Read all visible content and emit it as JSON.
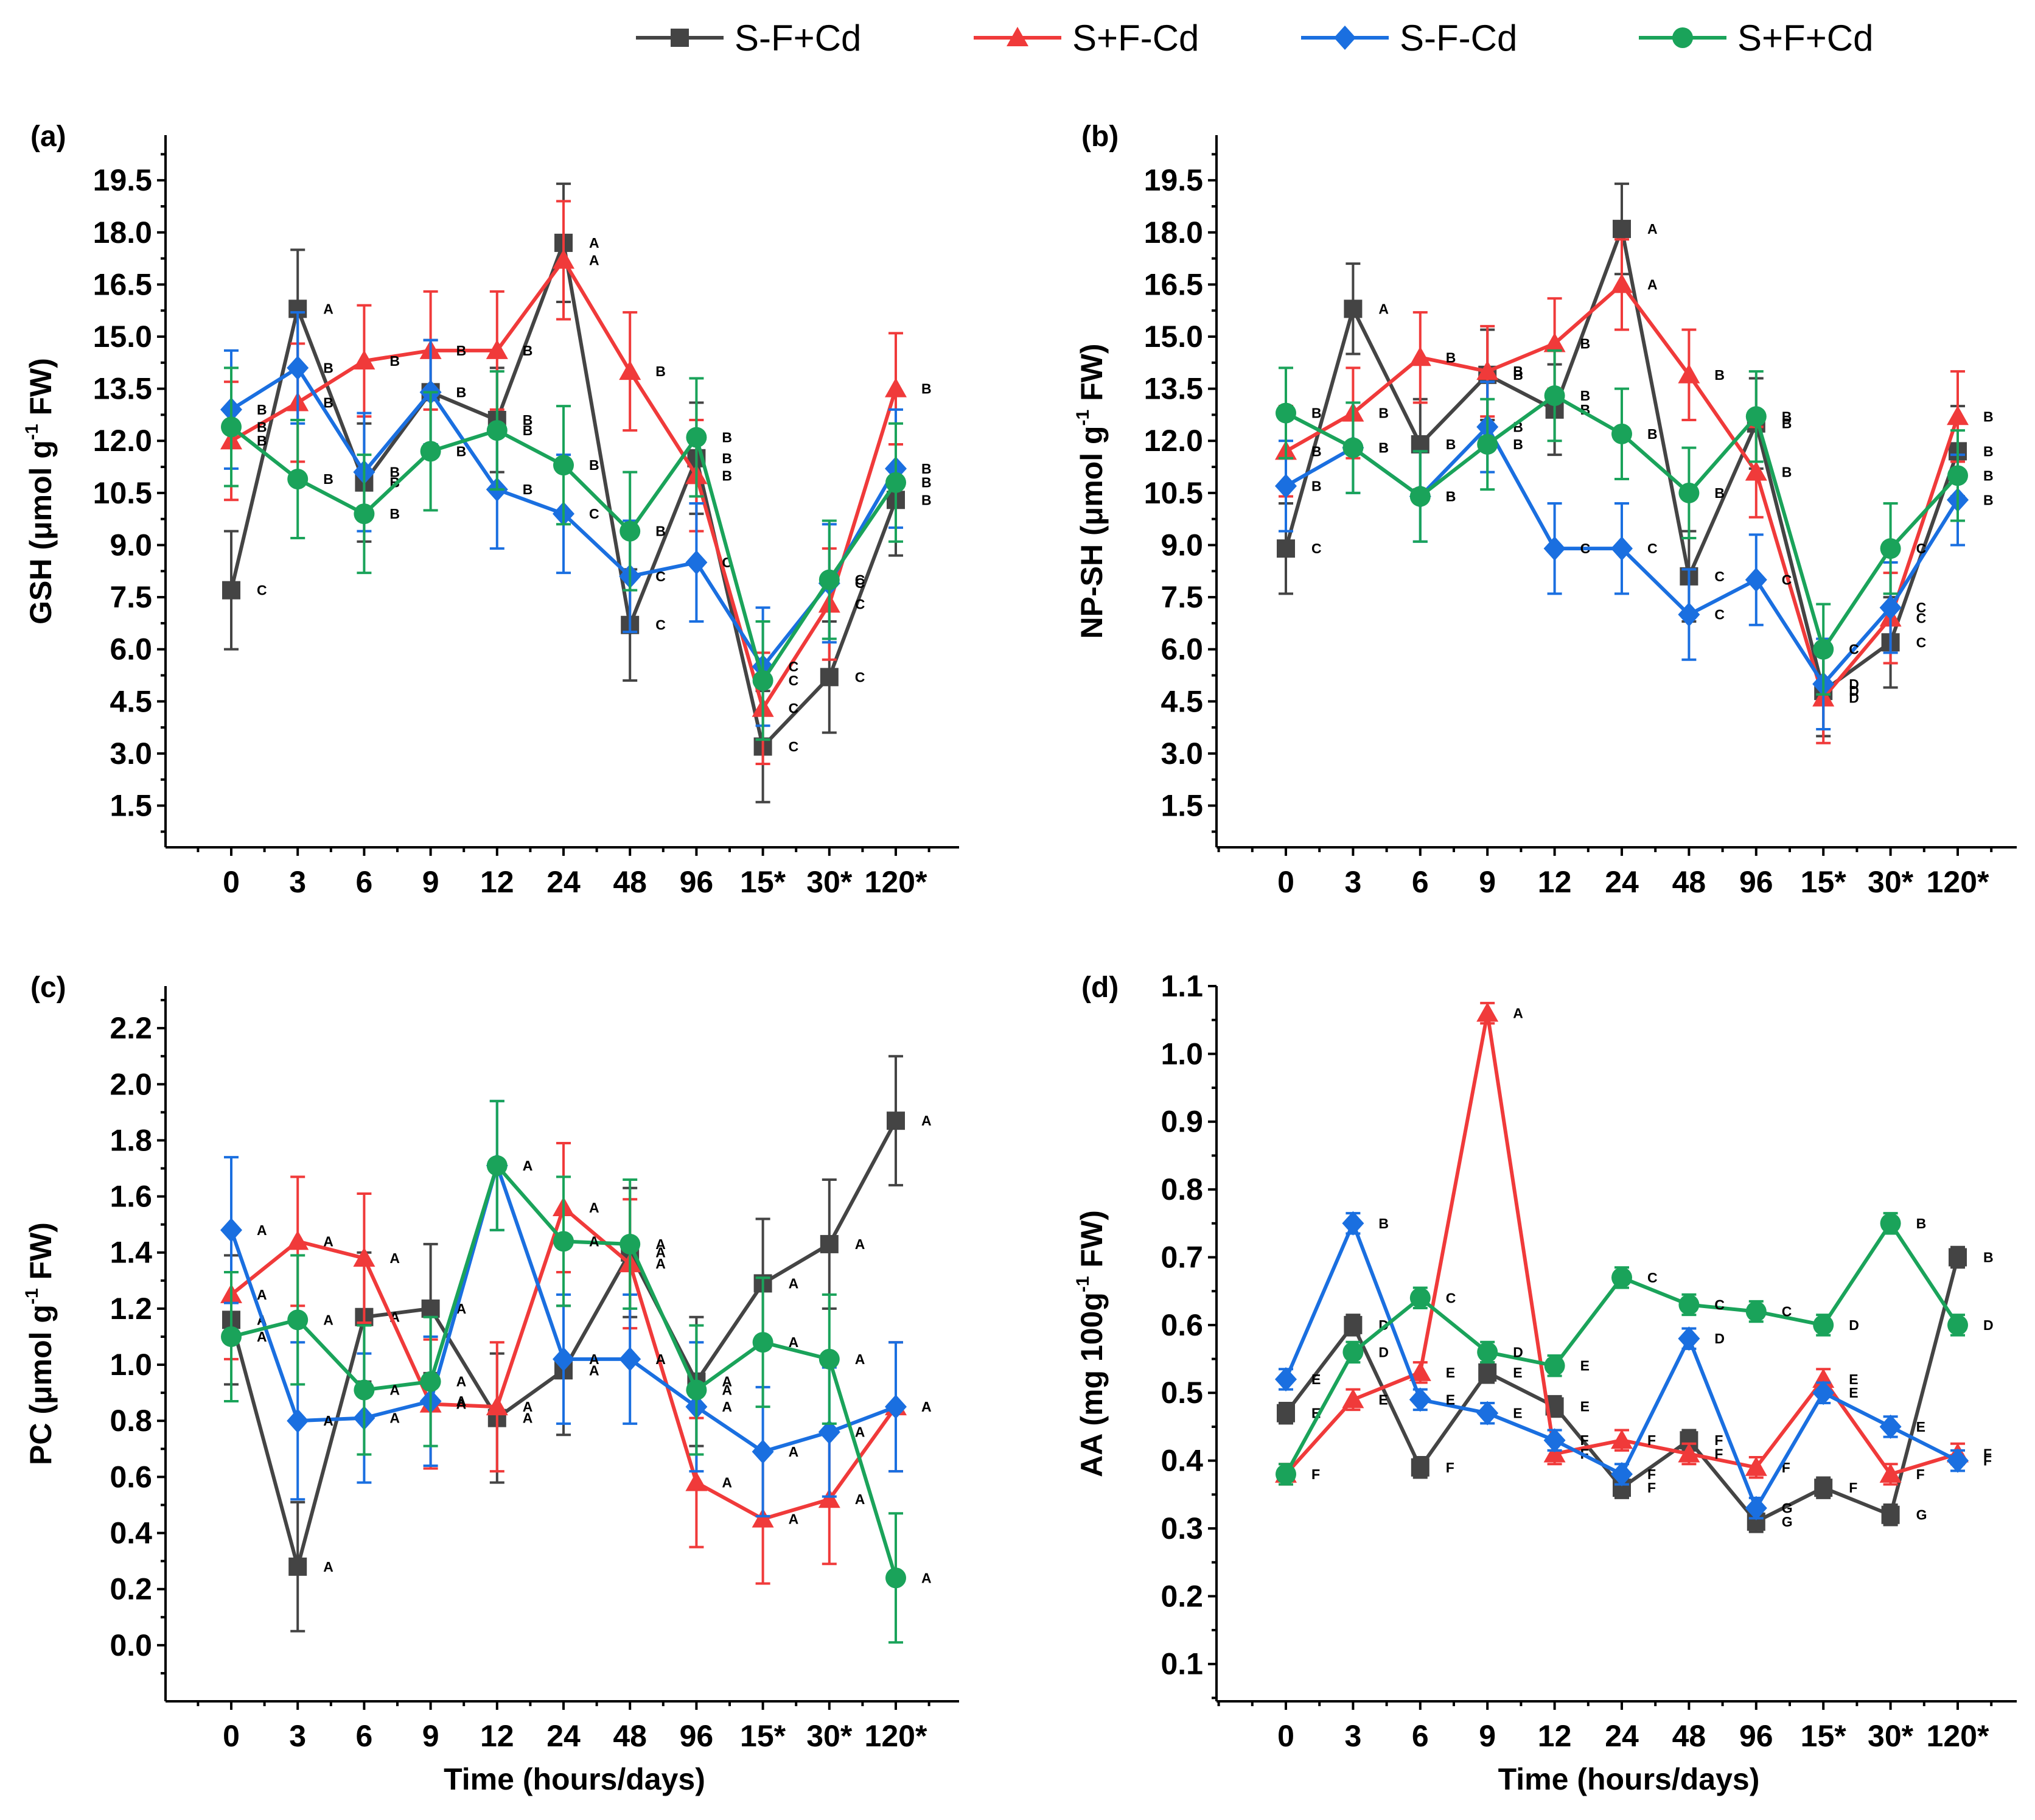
{
  "legend": [
    {
      "name": "S-F+Cd",
      "color": "#444444",
      "marker": "square"
    },
    {
      "name": "S+F-Cd",
      "color": "#f03a3a",
      "marker": "triangle"
    },
    {
      "name": "S-F-Cd",
      "color": "#1a6fe0",
      "marker": "diamond"
    },
    {
      "name": "S+F+Cd",
      "color": "#1aa35a",
      "marker": "circle"
    }
  ],
  "x_tick_labels": [
    "0",
    "3",
    "6",
    "9",
    "12",
    "24",
    "48",
    "96",
    "15*",
    "30*",
    "120*"
  ],
  "chart_data": [
    {
      "id": "a",
      "type": "line",
      "panel_label": "(a)",
      "title": "",
      "xlabel": "",
      "ylabel": "GSH (μmol g⁻¹ FW)",
      "ylabel_parts": {
        "main": "GSH (μmol g",
        "sup": "-1",
        "rest": " FW)"
      },
      "categories": [
        "0",
        "3",
        "6",
        "9",
        "12",
        "24",
        "48",
        "96",
        "15*",
        "30*",
        "120*"
      ],
      "ylim": [
        0.3,
        20.8
      ],
      "yticks": [
        "1.5",
        "3.0",
        "4.5",
        "6.0",
        "7.5",
        "9.0",
        "10.5",
        "12.0",
        "13.5",
        "15.0",
        "16.5",
        "18.0",
        "19.5"
      ],
      "series": [
        {
          "name": "S-F+Cd",
          "values": [
            7.7,
            15.8,
            10.8,
            13.4,
            12.6,
            17.7,
            6.7,
            11.5,
            3.2,
            5.2,
            10.3
          ],
          "errors": [
            1.7,
            1.7,
            1.7,
            1.5,
            1.5,
            1.7,
            1.6,
            1.6,
            1.6,
            1.6,
            1.6
          ],
          "labels": [
            "C",
            "A",
            "B",
            "B",
            "B",
            "A",
            "C",
            "B",
            "C",
            "C",
            "B"
          ]
        },
        {
          "name": "S+F-Cd",
          "values": [
            12.0,
            13.1,
            14.3,
            14.6,
            14.6,
            17.2,
            14.0,
            11.0,
            4.3,
            7.3,
            13.5
          ],
          "errors": [
            1.7,
            1.7,
            1.6,
            1.7,
            1.7,
            1.7,
            1.7,
            1.6,
            1.6,
            1.6,
            1.6
          ],
          "labels": [
            "B",
            "B",
            "B",
            "B",
            "B",
            "A",
            "B",
            "B",
            "C",
            "C",
            "B"
          ]
        },
        {
          "name": "S-F-Cd",
          "values": [
            12.9,
            14.1,
            11.1,
            13.4,
            10.6,
            9.9,
            8.1,
            8.5,
            5.5,
            7.9,
            11.2
          ],
          "errors": [
            1.7,
            1.6,
            1.7,
            1.5,
            1.7,
            1.7,
            1.6,
            1.7,
            1.7,
            1.7,
            1.7
          ],
          "labels": [
            "B",
            "B",
            "B",
            "B",
            "B",
            "C",
            "C",
            "C",
            "C",
            "C",
            "B"
          ]
        },
        {
          "name": "S+F+Cd",
          "values": [
            12.4,
            10.9,
            9.9,
            11.7,
            12.3,
            11.3,
            9.4,
            12.1,
            5.1,
            8.0,
            10.8
          ],
          "errors": [
            1.7,
            1.7,
            1.7,
            1.7,
            1.7,
            1.7,
            1.7,
            1.7,
            1.7,
            1.7,
            1.7
          ],
          "labels": [
            "B",
            "B",
            "B",
            "B",
            "B",
            "B",
            "B",
            "B",
            "C",
            "C",
            "B"
          ]
        }
      ]
    },
    {
      "id": "b",
      "type": "line",
      "panel_label": "(b)",
      "title": "",
      "xlabel": "",
      "ylabel": "NP-SH (μmol g⁻¹ FW)",
      "ylabel_parts": {
        "main": "NP-SH (μmol g",
        "sup": "-1",
        "rest": " FW)"
      },
      "categories": [
        "0",
        "3",
        "6",
        "9",
        "12",
        "24",
        "48",
        "96",
        "15*",
        "30*",
        "120*"
      ],
      "ylim": [
        0.3,
        20.8
      ],
      "yticks": [
        "1.5",
        "3.0",
        "4.5",
        "6.0",
        "7.5",
        "9.0",
        "10.5",
        "12.0",
        "13.5",
        "15.0",
        "16.5",
        "18.0",
        "19.5"
      ],
      "series": [
        {
          "name": "S-F+Cd",
          "values": [
            8.9,
            15.8,
            11.9,
            13.9,
            12.9,
            18.1,
            8.1,
            12.5,
            4.8,
            6.2,
            11.7
          ],
          "errors": [
            1.3,
            1.3,
            1.3,
            1.3,
            1.3,
            1.3,
            1.3,
            1.3,
            1.3,
            1.3,
            1.3
          ],
          "labels": [
            "C",
            "A",
            "B",
            "B",
            "B",
            "A",
            "C",
            "B",
            "D",
            "C",
            "B"
          ]
        },
        {
          "name": "S+F-Cd",
          "values": [
            11.7,
            12.8,
            14.4,
            14.0,
            14.8,
            16.5,
            13.9,
            11.1,
            4.6,
            6.9,
            12.7
          ],
          "errors": [
            1.3,
            1.3,
            1.3,
            1.3,
            1.3,
            1.3,
            1.3,
            1.3,
            1.3,
            1.3,
            1.3
          ],
          "labels": [
            "B",
            "B",
            "B",
            "B",
            "B",
            "A",
            "B",
            "B",
            "D",
            "C",
            "B"
          ]
        },
        {
          "name": "S-F-Cd",
          "values": [
            10.7,
            11.8,
            10.4,
            12.4,
            8.9,
            8.9,
            7.0,
            8.0,
            5.0,
            7.2,
            10.3
          ],
          "errors": [
            1.3,
            1.3,
            1.3,
            1.3,
            1.3,
            1.3,
            1.3,
            1.3,
            1.3,
            1.3,
            1.3
          ],
          "labels": [
            "B",
            "B",
            "B",
            "B",
            "C",
            "C",
            "C",
            "C",
            "D",
            "C",
            "B"
          ]
        },
        {
          "name": "S+F+Cd",
          "values": [
            12.8,
            11.8,
            10.4,
            11.9,
            13.3,
            12.2,
            10.5,
            12.7,
            6.0,
            8.9,
            11.0
          ],
          "errors": [
            1.3,
            1.3,
            1.3,
            1.3,
            1.3,
            1.3,
            1.3,
            1.3,
            1.3,
            1.3,
            1.3
          ],
          "labels": [
            "B",
            "B",
            "B",
            "B",
            "B",
            "B",
            "B",
            "B",
            "C",
            "C",
            "B"
          ]
        }
      ]
    },
    {
      "id": "c",
      "type": "line",
      "panel_label": "(c)",
      "title": "",
      "xlabel": "Time (hours/days)",
      "ylabel": "PC (μmol g⁻¹ FW)",
      "ylabel_parts": {
        "main": "PC (μmol g",
        "sup": "-1",
        "rest": " FW)"
      },
      "categories": [
        "0",
        "3",
        "6",
        "9",
        "12",
        "24",
        "48",
        "96",
        "15*",
        "30*",
        "120*"
      ],
      "ylim": [
        -0.2,
        2.35
      ],
      "yticks": [
        "0.0",
        "0.2",
        "0.4",
        "0.6",
        "0.8",
        "1.0",
        "1.2",
        "1.4",
        "1.6",
        "1.8",
        "2.0",
        "2.2"
      ],
      "series": [
        {
          "name": "S-F+Cd",
          "values": [
            1.16,
            0.28,
            1.17,
            1.2,
            0.81,
            0.98,
            1.4,
            0.94,
            1.29,
            1.43,
            1.87
          ],
          "errors": [
            0.23,
            0.23,
            0.23,
            0.23,
            0.23,
            0.23,
            0.23,
            0.23,
            0.23,
            0.23,
            0.23
          ],
          "labels": [
            "A",
            "A",
            "A",
            "A",
            "A",
            "A",
            "A",
            "A",
            "A",
            "A",
            "A"
          ]
        },
        {
          "name": "S+F-Cd",
          "values": [
            1.25,
            1.44,
            1.38,
            0.86,
            0.85,
            1.56,
            1.36,
            0.58,
            0.45,
            0.52,
            0.85
          ],
          "errors": [
            0.23,
            0.23,
            0.23,
            0.23,
            0.23,
            0.23,
            0.23,
            0.23,
            0.23,
            0.23,
            0.23
          ],
          "labels": [
            "A",
            "A",
            "A",
            "A",
            "A",
            "A",
            "A",
            "A",
            "A",
            "A",
            "A"
          ]
        },
        {
          "name": "S-F-Cd",
          "values": [
            1.48,
            0.8,
            0.81,
            0.87,
            1.71,
            1.02,
            1.02,
            0.85,
            0.69,
            0.76,
            0.85
          ],
          "errors": [
            0.26,
            0.28,
            0.23,
            0.23,
            0.23,
            0.23,
            0.23,
            0.23,
            0.23,
            0.23,
            0.23
          ],
          "labels": [
            "A",
            "A",
            "A",
            "A",
            "A",
            "A",
            "A",
            "A",
            "A",
            "A",
            "A"
          ]
        },
        {
          "name": "S+F+Cd",
          "values": [
            1.1,
            1.16,
            0.91,
            0.94,
            1.71,
            1.44,
            1.43,
            0.91,
            1.08,
            1.02,
            0.24
          ],
          "errors": [
            0.23,
            0.23,
            0.23,
            0.23,
            0.23,
            0.23,
            0.23,
            0.23,
            0.23,
            0.23,
            0.23
          ],
          "labels": [
            "A",
            "A",
            "A",
            "A",
            "A",
            "A",
            "A",
            "A",
            "A",
            "A",
            "A"
          ]
        }
      ]
    },
    {
      "id": "d",
      "type": "line",
      "panel_label": "(d)",
      "title": "",
      "xlabel": "Time (hours/days)",
      "ylabel": "AA (mg 100g⁻¹ FW)",
      "ylabel_parts": {
        "main": "AA (mg 100g",
        "sup": "-1",
        "rest": " FW)"
      },
      "categories": [
        "0",
        "3",
        "6",
        "9",
        "12",
        "24",
        "48",
        "96",
        "15*",
        "30*",
        "120*"
      ],
      "ylim": [
        0.045,
        1.1
      ],
      "yticks": [
        "0.1",
        "0.2",
        "0.3",
        "0.4",
        "0.5",
        "0.6",
        "0.7",
        "0.8",
        "0.9",
        "1.0",
        "1.1"
      ],
      "series": [
        {
          "name": "S-F+Cd",
          "values": [
            0.47,
            0.6,
            0.39,
            0.53,
            0.48,
            0.36,
            0.43,
            0.31,
            0.36,
            0.32,
            0.7
          ],
          "errors": [
            0.015,
            0.015,
            0.015,
            0.015,
            0.015,
            0.015,
            0.015,
            0.015,
            0.015,
            0.015,
            0.015
          ],
          "labels": [
            "E",
            "D",
            "F",
            "E",
            "E",
            "F",
            "F",
            "G",
            "F",
            "G",
            "B"
          ]
        },
        {
          "name": "S+F-Cd",
          "values": [
            0.38,
            0.49,
            0.53,
            1.06,
            0.41,
            0.43,
            0.41,
            0.39,
            0.52,
            0.38,
            0.41
          ],
          "errors": [
            0.015,
            0.015,
            0.015,
            0.015,
            0.015,
            0.015,
            0.015,
            0.015,
            0.015,
            0.015,
            0.015
          ],
          "labels": [
            "F",
            "E",
            "E",
            "A",
            "F",
            "F",
            "F",
            "F",
            "E",
            "F",
            "F"
          ]
        },
        {
          "name": "S-F-Cd",
          "values": [
            0.52,
            0.75,
            0.49,
            0.47,
            0.43,
            0.38,
            0.58,
            0.33,
            0.5,
            0.45,
            0.4
          ],
          "errors": [
            0.015,
            0.015,
            0.015,
            0.015,
            0.015,
            0.015,
            0.015,
            0.015,
            0.015,
            0.015,
            0.015
          ],
          "labels": [
            "E",
            "B",
            "E",
            "E",
            "F",
            "F",
            "D",
            "G",
            "E",
            "E",
            "F"
          ]
        },
        {
          "name": "S+F+Cd",
          "values": [
            0.38,
            0.56,
            0.64,
            0.56,
            0.54,
            0.67,
            0.63,
            0.62,
            0.6,
            0.75,
            0.6
          ],
          "errors": [
            0.015,
            0.015,
            0.015,
            0.015,
            0.015,
            0.015,
            0.015,
            0.015,
            0.015,
            0.015,
            0.015
          ],
          "labels": [
            "F",
            "D",
            "C",
            "D",
            "E",
            "C",
            "C",
            "C",
            "D",
            "B",
            "D"
          ]
        }
      ]
    }
  ]
}
